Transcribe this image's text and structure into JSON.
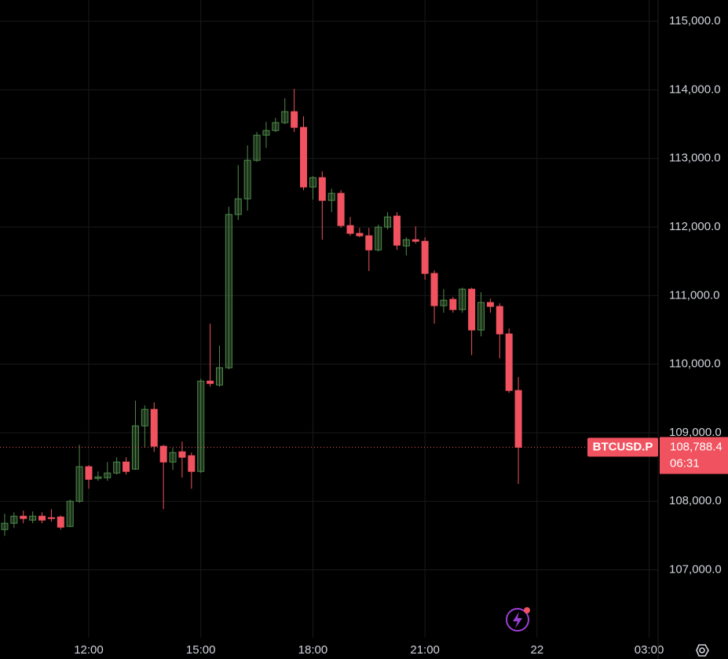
{
  "chart_data": {
    "type": "candlestick",
    "x": [
      9.75,
      10,
      10.25,
      10.5,
      10.75,
      11,
      11.25,
      11.5,
      11.75,
      12,
      12.25,
      12.5,
      12.75,
      13,
      13.25,
      13.5,
      13.75,
      14,
      14.25,
      14.5,
      14.75,
      15,
      15.25,
      15.5,
      15.75,
      16,
      16.25,
      16.5,
      16.75,
      17,
      17.25,
      17.5,
      17.75,
      18,
      18.25,
      18.5,
      18.75,
      19,
      19.25,
      19.5,
      19.75,
      20,
      20.25,
      20.5,
      20.75,
      21,
      21.25,
      21.5,
      21.75,
      22,
      22.25,
      22.5,
      22.75,
      23,
      23.25,
      23.5
    ],
    "open": [
      107588,
      107680,
      107783,
      107726,
      107783,
      107761,
      107772,
      107634,
      108001,
      108505,
      108333,
      108344,
      108413,
      108573,
      108470,
      109100,
      109341,
      108803,
      108573,
      108722,
      108665,
      108436,
      109753,
      109696,
      109948,
      112182,
      112411,
      112972,
      113339,
      113407,
      113522,
      113682,
      113453,
      112583,
      112720,
      112388,
      112491,
      112021,
      111907,
      111872,
      111666,
      111999,
      112159,
      111724,
      111815,
      111792,
      111323,
      110853,
      110945,
      110796,
      111094,
      110498,
      110899,
      110842,
      110441,
      109616
    ],
    "high": [
      107818,
      107840,
      107863,
      107852,
      107840,
      107886,
      107794,
      108024,
      108825,
      108528,
      108436,
      108573,
      108642,
      108642,
      109467,
      109398,
      109444,
      108825,
      108780,
      108871,
      108711,
      109788,
      110590,
      110269,
      112296,
      112903,
      113190,
      113385,
      113533,
      113591,
      113877,
      114015,
      113614,
      112743,
      112812,
      112560,
      112537,
      112147,
      111987,
      111987,
      112033,
      112216,
      112216,
      111850,
      112010,
      111850,
      111368,
      111094,
      110979,
      111116,
      111116,
      111048,
      110956,
      110887,
      110521,
      109811
    ],
    "low": [
      107496,
      107611,
      107680,
      107680,
      107680,
      107703,
      107588,
      107623,
      107978,
      108184,
      108299,
      108299,
      108390,
      108390,
      108459,
      108780,
      108722,
      107886,
      108459,
      108344,
      108184,
      108413,
      109673,
      109673,
      109925,
      112102,
      112239,
      112949,
      113155,
      113385,
      113499,
      113385,
      112537,
      112399,
      111815,
      112216,
      111987,
      111872,
      111850,
      111357,
      111643,
      111964,
      111666,
      111586,
      111758,
      111231,
      110590,
      110750,
      110750,
      110750,
      110131,
      110406,
      110750,
      110086,
      109581,
      108253
    ],
    "close": [
      107680,
      107783,
      107749,
      107783,
      107726,
      107749,
      107623,
      108001,
      108505,
      108321,
      108356,
      108413,
      108573,
      108436,
      109100,
      109341,
      108803,
      108573,
      108711,
      108642,
      108436,
      109753,
      109719,
      109948,
      112182,
      112411,
      112972,
      113339,
      113407,
      113522,
      113682,
      113453,
      112583,
      112720,
      112388,
      112491,
      112021,
      111907,
      111872,
      111666,
      111999,
      112147,
      111735,
      111815,
      111792,
      111323,
      110853,
      110933,
      110796,
      111094,
      110498,
      110899,
      110842,
      110441,
      109616,
      108788.4
    ],
    "up_color": "#4f8a4b",
    "down_color": "#f0525f",
    "xlim": [
      9.625,
      27.24
    ],
    "ylim": [
      106010,
      115310
    ],
    "xticks": [
      {
        "value": 12,
        "label": "12:00"
      },
      {
        "value": 15,
        "label": "15:00"
      },
      {
        "value": 18,
        "label": "18:00"
      },
      {
        "value": 21,
        "label": "21:00"
      },
      {
        "value": 24,
        "label": "22"
      },
      {
        "value": 27,
        "label": "03:00"
      }
    ],
    "yticks": [
      {
        "value": 107000,
        "label": "107,000.0"
      },
      {
        "value": 108000,
        "label": "108,000.0"
      },
      {
        "value": 109000,
        "label": "109,000.0"
      },
      {
        "value": 110000,
        "label": "110,000.0"
      },
      {
        "value": 111000,
        "label": "111,000.0"
      },
      {
        "value": 112000,
        "label": "112,000.0"
      },
      {
        "value": 113000,
        "label": "113,000.0"
      },
      {
        "value": 114000,
        "label": "114,000.0"
      },
      {
        "value": 115000,
        "label": "115,000.0"
      }
    ],
    "grid": true,
    "price_line": {
      "value": 108788.4,
      "label": "108,788.4",
      "symbol": "BTCUSD.P",
      "countdown": "06:31"
    }
  }
}
